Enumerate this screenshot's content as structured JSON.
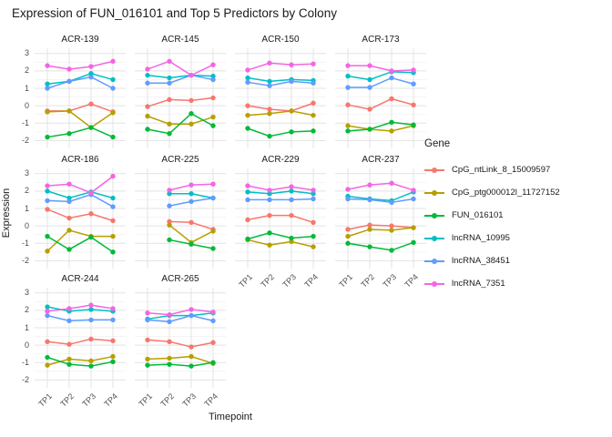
{
  "title": "Expression of FUN_016101 and Top 5 Predictors by Colony",
  "axes": {
    "x_title": "Timepoint",
    "y_title": "Expression",
    "x_ticks": [
      "TP1",
      "TP2",
      "TP3",
      "TP4"
    ],
    "y_ticks": [
      "3",
      "2",
      "1",
      "0",
      "-1",
      "-2"
    ]
  },
  "legend": {
    "title": "Gene",
    "items": [
      {
        "label": "CpG_ntLink_8_15009597",
        "color": "#F8766D"
      },
      {
        "label": "CpG_ptg000012l_11727152",
        "color": "#B79F00"
      },
      {
        "label": "FUN_016101",
        "color": "#00BA38"
      },
      {
        "label": "lncRNA_10995",
        "color": "#00BFC4"
      },
      {
        "label": "lncRNA_38451",
        "color": "#619CFF"
      },
      {
        "label": "lncRNA_7351",
        "color": "#F564E3"
      }
    ]
  },
  "chart_data": {
    "type": "line",
    "facet_by": "Colony",
    "x": [
      "TP1",
      "TP2",
      "TP3",
      "TP4"
    ],
    "ylim": [
      -2.45,
      3.3
    ],
    "y_major_gridlines": [
      3,
      2,
      1,
      0,
      -1,
      -2
    ],
    "y_minor_gridlines": [
      2.5,
      1.5,
      0.5,
      -0.5,
      -1.5
    ],
    "grid": true,
    "legend_position": "right",
    "series_names": [
      "CpG_ntLink_8_15009597",
      "CpG_ptg000012l_11727152",
      "FUN_016101",
      "lncRNA_10995",
      "lncRNA_38451",
      "lncRNA_7351"
    ],
    "facets": [
      {
        "name": "ACR-139",
        "values": [
          [
            -0.3,
            -0.3,
            0.1,
            -0.35
          ],
          [
            -0.35,
            -0.3,
            -1.25,
            -0.4
          ],
          [
            -1.8,
            -1.6,
            -1.25,
            -1.8
          ],
          [
            1.25,
            1.4,
            1.85,
            1.5
          ],
          [
            1.0,
            1.4,
            1.65,
            1.0
          ],
          [
            2.3,
            2.1,
            2.25,
            2.55
          ]
        ]
      },
      {
        "name": "ACR-145",
        "values": [
          [
            -0.05,
            0.35,
            0.3,
            0.45
          ],
          [
            -0.6,
            -1.05,
            -1.05,
            -0.65
          ],
          [
            -1.35,
            -1.6,
            -0.45,
            -1.15
          ],
          [
            1.75,
            1.6,
            1.75,
            1.7
          ],
          [
            1.3,
            1.3,
            1.75,
            1.5
          ],
          [
            2.1,
            2.55,
            1.75,
            2.35
          ]
        ]
      },
      {
        "name": "ACR-150",
        "values": [
          [
            0.0,
            -0.2,
            -0.3,
            0.15
          ],
          [
            -0.55,
            -0.45,
            -0.3,
            -0.55
          ],
          [
            -1.3,
            -1.75,
            -1.5,
            -1.45
          ],
          [
            1.6,
            1.4,
            1.5,
            1.45
          ],
          [
            1.35,
            1.15,
            1.4,
            1.3
          ],
          [
            2.05,
            2.45,
            2.35,
            2.4
          ]
        ]
      },
      {
        "name": "ACR-173",
        "values": [
          [
            0.05,
            -0.2,
            0.4,
            0.05
          ],
          [
            -1.15,
            -1.35,
            -1.45,
            -1.15
          ],
          [
            -1.45,
            -1.35,
            -0.95,
            -1.1
          ],
          [
            1.7,
            1.5,
            1.95,
            1.9
          ],
          [
            1.05,
            1.05,
            1.6,
            1.25
          ],
          [
            2.3,
            2.3,
            2.0,
            2.05
          ]
        ]
      },
      {
        "name": "ACR-186",
        "values": [
          [
            0.95,
            0.45,
            0.7,
            0.3
          ],
          [
            -1.45,
            -0.25,
            -0.6,
            -0.6
          ],
          [
            -0.6,
            -1.35,
            -0.65,
            -1.5
          ],
          [
            2.0,
            1.6,
            1.95,
            1.6
          ],
          [
            1.45,
            1.4,
            1.8,
            1.1
          ],
          [
            2.3,
            2.4,
            1.9,
            2.85
          ]
        ]
      },
      {
        "name": "ACR-225",
        "values": [
          [
            null,
            0.25,
            0.2,
            -0.2
          ],
          [
            null,
            0.05,
            -0.95,
            -0.3
          ],
          [
            null,
            -0.8,
            -1.05,
            -1.3
          ],
          [
            null,
            1.85,
            1.85,
            1.6
          ],
          [
            null,
            1.15,
            1.4,
            1.6
          ],
          [
            null,
            2.05,
            2.35,
            2.4
          ]
        ]
      },
      {
        "name": "ACR-229",
        "values": [
          [
            0.35,
            0.6,
            0.6,
            0.2
          ],
          [
            -0.8,
            -1.1,
            -0.9,
            -1.2
          ],
          [
            -0.75,
            -0.4,
            -0.7,
            -0.6
          ],
          [
            1.95,
            1.85,
            2.0,
            1.85
          ],
          [
            1.5,
            1.5,
            1.5,
            1.55
          ],
          [
            2.3,
            2.05,
            2.25,
            2.05
          ]
        ]
      },
      {
        "name": "ACR-237",
        "values": [
          [
            -0.2,
            0.05,
            0.0,
            -0.1
          ],
          [
            -0.6,
            -0.2,
            -0.25,
            -0.1
          ],
          [
            -1.0,
            -1.2,
            -1.4,
            -0.95
          ],
          [
            1.7,
            1.55,
            1.45,
            1.95
          ],
          [
            1.55,
            1.5,
            1.35,
            1.55
          ],
          [
            2.1,
            2.35,
            2.45,
            2.05
          ]
        ]
      },
      {
        "name": "ACR-244",
        "values": [
          [
            0.2,
            0.05,
            0.35,
            0.25
          ],
          [
            -1.15,
            -0.8,
            -0.9,
            -0.65
          ],
          [
            -0.7,
            -1.1,
            -1.2,
            -0.95
          ],
          [
            2.2,
            1.95,
            2.05,
            1.95
          ],
          [
            1.7,
            1.4,
            1.45,
            1.45
          ],
          [
            1.95,
            2.1,
            2.3,
            2.1
          ]
        ]
      },
      {
        "name": "ACR-265",
        "values": [
          [
            0.3,
            0.2,
            -0.1,
            0.15
          ],
          [
            -0.8,
            -0.75,
            -0.65,
            -1.05
          ],
          [
            -1.15,
            -1.1,
            -1.2,
            -1.0
          ],
          [
            1.5,
            1.7,
            1.7,
            1.85
          ],
          [
            1.45,
            1.35,
            1.7,
            1.4
          ],
          [
            1.85,
            1.75,
            2.05,
            1.9
          ]
        ]
      }
    ],
    "colors": {
      "grid_major": "#e3e3e3",
      "grid_minor": "#f2f2f2",
      "tick_text": "#4d4d4d"
    }
  }
}
